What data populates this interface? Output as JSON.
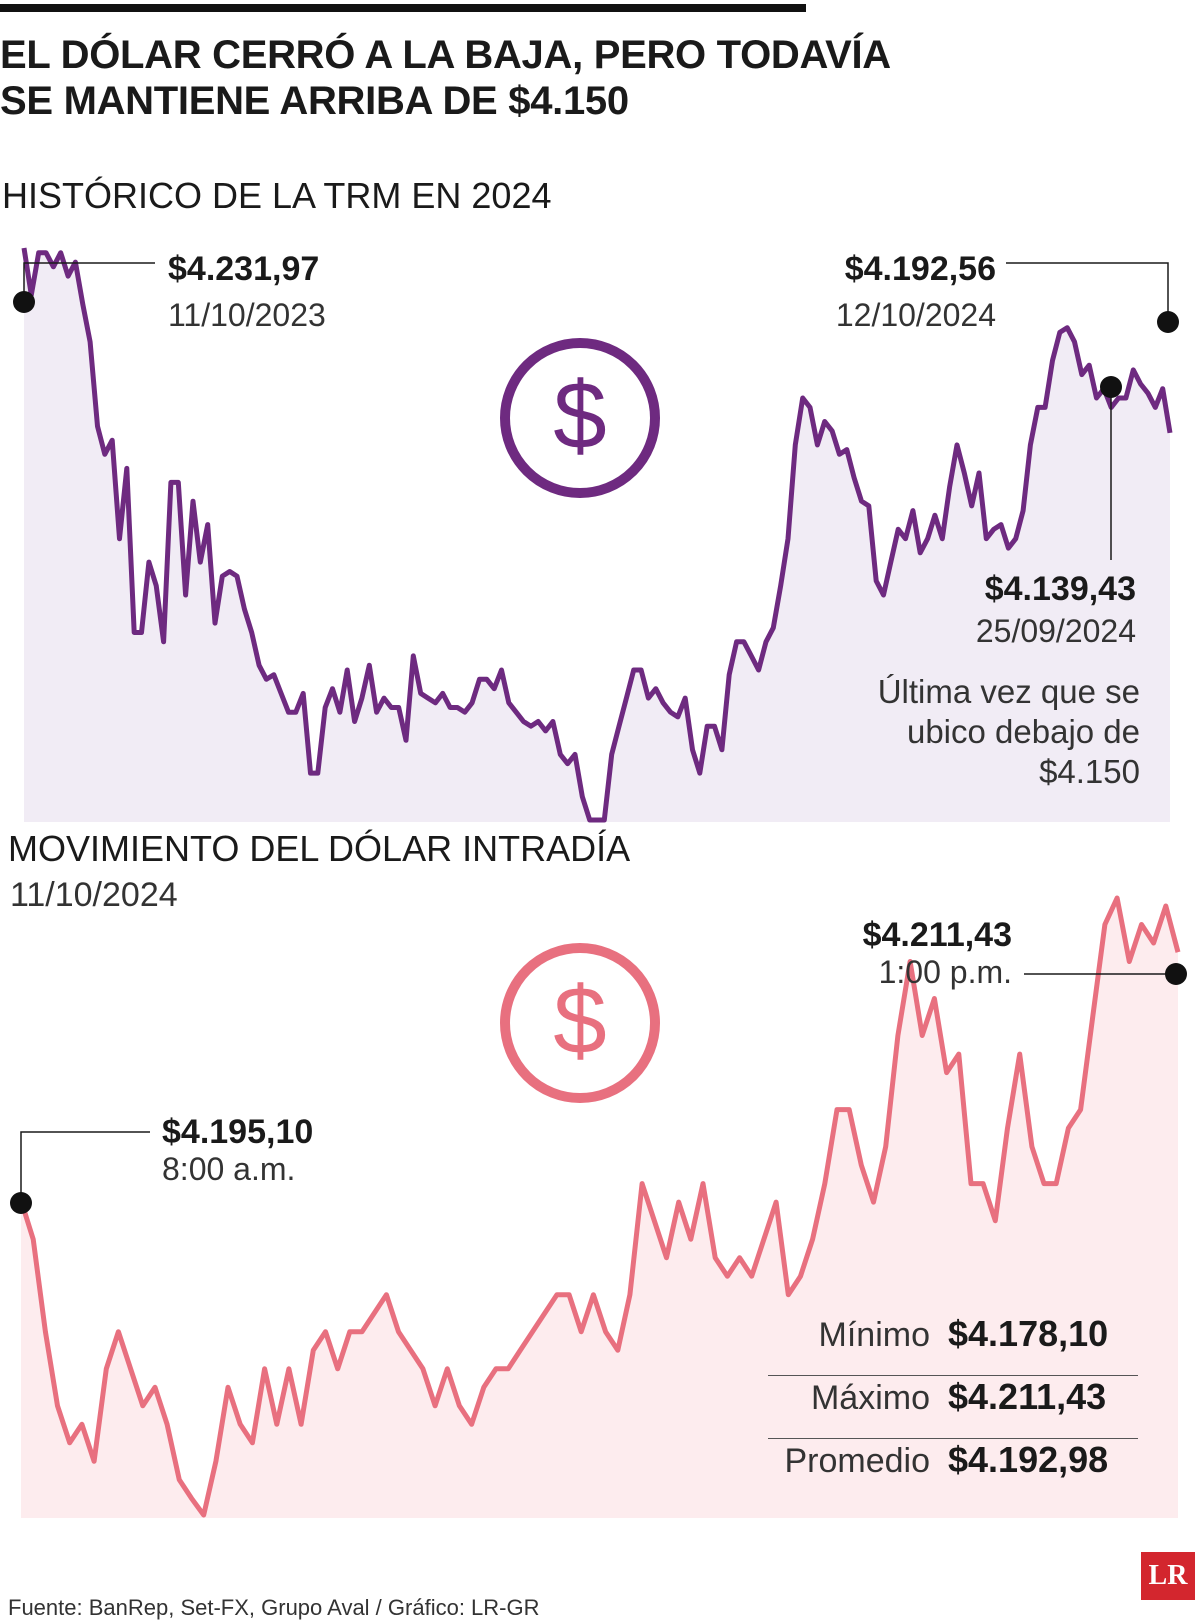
{
  "headline": "EL DÓLAR CERRÓ A LA BAJA, PERO TODAVÍA SE MANTIENE ARRIBA DE $4.150",
  "colors": {
    "purple": "#6e2a80",
    "purple_fill": "#f1ecf5",
    "pink": "#e8707f",
    "pink_fill": "#fdecee"
  },
  "chart_data": [
    {
      "type": "area",
      "title": "HISTÓRICO DE LA TRM EN 2024",
      "series": [
        {
          "values": [
            4232,
            4222,
            4231,
            4231,
            4228,
            4231,
            4226,
            4229,
            4220,
            4212,
            4194,
            4188,
            4191,
            4170,
            4185,
            4150,
            4150,
            4165,
            4160,
            4148,
            4182,
            4182,
            4158,
            4178,
            4165,
            4173,
            4152,
            4162,
            4163,
            4162,
            4155,
            4150,
            4143,
            4140,
            4141,
            4137,
            4133,
            4133,
            4137,
            4120,
            4120,
            4134,
            4138,
            4133,
            4142,
            4131,
            4136,
            4143,
            4133,
            4136,
            4134,
            4134,
            4127,
            4145,
            4137,
            4136,
            4135,
            4137,
            4134,
            4134,
            4133,
            4135,
            4140,
            4140,
            4138,
            4142,
            4135,
            4133,
            4131,
            4130,
            4131,
            4129,
            4131,
            4124,
            4122,
            4124,
            4115,
            4110,
            4110,
            4110,
            4124,
            4130,
            4136,
            4142,
            4142,
            4136,
            4138,
            4135,
            4133,
            4132,
            4136,
            4125,
            4120,
            4130,
            4130,
            4125,
            4141,
            4148,
            4148,
            4145,
            4142,
            4148,
            4151,
            4160,
            4170,
            4190,
            4200,
            4198,
            4190,
            4195,
            4193,
            4188,
            4189,
            4183,
            4178,
            4177,
            4161,
            4158,
            4165,
            4172,
            4170,
            4176,
            4167,
            4170,
            4175,
            4170,
            4181,
            4190,
            4184,
            4177,
            4184,
            4170,
            4172,
            4173,
            4168,
            4170,
            4176,
            4190,
            4198,
            4198,
            4208,
            4214,
            4215,
            4212,
            4205,
            4207,
            4200,
            4202,
            4198,
            4200,
            4200,
            4206,
            4203,
            4201,
            4198,
            4202,
            4192.56
          ]
        }
      ],
      "annotations": [
        {
          "value": "$4.231,97",
          "date": "11/10/2023"
        },
        {
          "value": "$4.192,56",
          "date": "12/10/2024"
        },
        {
          "value": "$4.139,43",
          "date": "25/09/2024"
        }
      ],
      "note": "Última vez que se ubico debajo de $4.150"
    },
    {
      "type": "area",
      "title": "MOVIMIENTO DEL DÓLAR INTRADÍA",
      "subtitle": "11/10/2024",
      "series": [
        {
          "values": [
            4195.1,
            4193,
            4188,
            4184,
            4182,
            4183,
            4181,
            4186,
            4188,
            4186,
            4184,
            4185,
            4183,
            4180,
            4179,
            4178.1,
            4181,
            4185,
            4183,
            4182,
            4186,
            4183,
            4186,
            4183,
            4187,
            4188,
            4186,
            4188,
            4188,
            4189,
            4190,
            4188,
            4187,
            4186,
            4184,
            4186,
            4184,
            4183,
            4185,
            4186,
            4186,
            4187,
            4188,
            4189,
            4190,
            4190,
            4188,
            4190,
            4188,
            4187,
            4190,
            4196,
            4194,
            4192,
            4195,
            4193,
            4196,
            4192,
            4191,
            4192,
            4191,
            4193,
            4195,
            4190,
            4191,
            4193,
            4196,
            4200,
            4200,
            4197,
            4195,
            4198,
            4204,
            4208,
            4204,
            4206,
            4202,
            4203,
            4196,
            4196,
            4194,
            4199,
            4203,
            4198,
            4196,
            4196,
            4199,
            4200,
            4205,
            4210,
            4211.43,
            4208,
            4210,
            4209,
            4211,
            4208.5
          ]
        }
      ],
      "annotations": [
        {
          "value": "$4.211,43",
          "time": "1:00 p.m."
        },
        {
          "value": "$4.195,10",
          "time": "8:00 a.m."
        }
      ],
      "stats": [
        {
          "label": "Mínimo",
          "value": "$4.178,10"
        },
        {
          "label": "Máximo",
          "value": "$4.211,43"
        },
        {
          "label": "Promedio",
          "value": "$4.192,98"
        }
      ]
    }
  ],
  "source": "Fuente: BanRep, Set-FX, Grupo Aval / Gráfico: LR-GR",
  "logo_text": "LR"
}
